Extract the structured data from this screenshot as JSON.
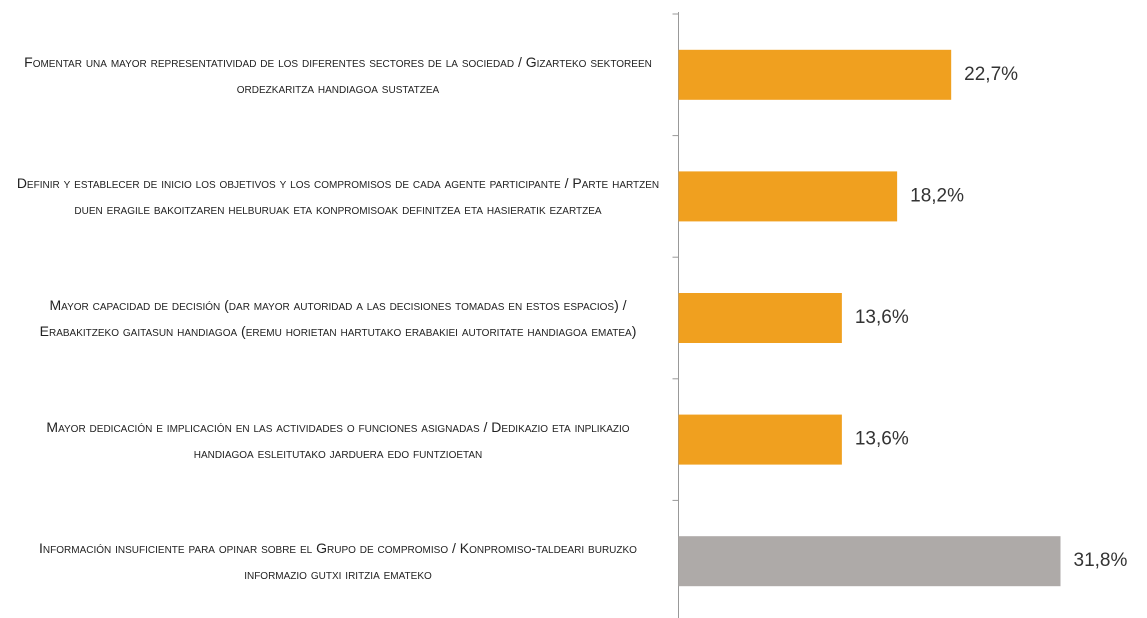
{
  "chart_data": {
    "type": "bar",
    "orientation": "horizontal",
    "categories": [
      "Fomentar una mayor representatividad de los diferentes sectores de la sociedad / Gizarteko sektoreen ordezkaritza handiagoa sustatzea",
      "Definir y establecer de inicio los objetivos y los compromisos de cada agente participante / Parte hartzen duen eragile bakoitzaren helburuak eta konpromisoak definitzea eta hasieratik ezartzea",
      "Mayor capacidad de decisión (dar mayor autoridad a las decisiones tomadas en estos espacios) / Erabakitzeko gaitasun handiagoa (eremu horietan hartutako erabakiei autoritate handiagoa ematea)",
      "Mayor dedicación e implicación en las actividades o funciones asignadas / Dedikazio eta inplikazio handiagoa esleitutako jarduera edo funtzioetan",
      "Información insuficiente para opinar sobre el Grupo de compromiso / Konpromiso-taldeari buruzko informazio gutxi iritzia emateko"
    ],
    "values": [
      22.7,
      18.2,
      13.6,
      13.6,
      31.8
    ],
    "value_labels": [
      "22,7%",
      "18,2%",
      "13,6%",
      "13,6%",
      "31,8%"
    ],
    "colors": [
      "#f0a01f",
      "#f0a01f",
      "#f0a01f",
      "#f0a01f",
      "#aeaaa8"
    ]
  }
}
